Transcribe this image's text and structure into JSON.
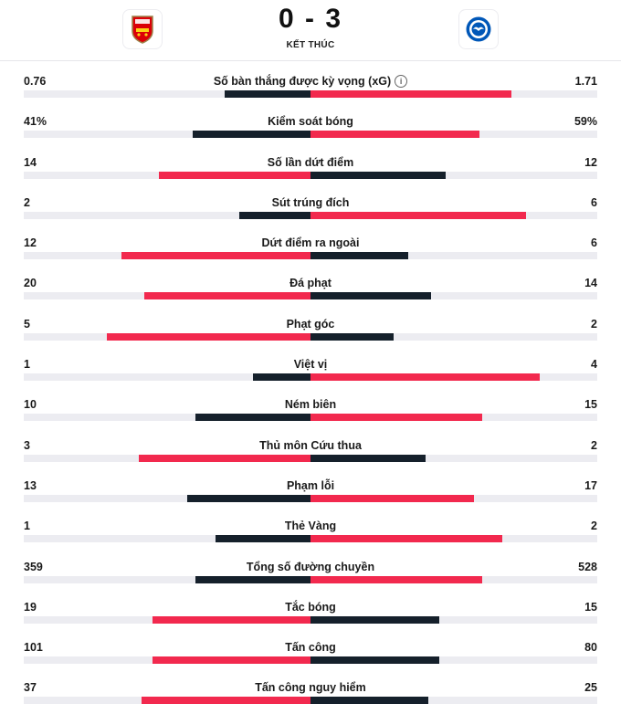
{
  "match": {
    "score": "0 - 3",
    "status": "KẾT THÚC",
    "home_team": "Arsenal",
    "away_team": "Brighton"
  },
  "colors": {
    "red": "#f2294e",
    "dark": "#15202b",
    "track": "#ececf1"
  },
  "stats": [
    {
      "label": "Số bàn thắng được kỳ vọng (xG)",
      "home": "0.76",
      "away": "1.71",
      "info": true,
      "home_frac": 0.3,
      "away_frac": 0.7,
      "home_color": "dark",
      "away_color": "red"
    },
    {
      "label": "Kiểm soát bóng",
      "home": "41%",
      "away": "59%",
      "home_frac": 0.41,
      "away_frac": 0.59,
      "home_color": "dark",
      "away_color": "red"
    },
    {
      "label": "Số lần dứt điểm",
      "home": "14",
      "away": "12",
      "home_frac": 0.53,
      "away_frac": 0.47,
      "home_color": "red",
      "away_color": "dark"
    },
    {
      "label": "Sút trúng đích",
      "home": "2",
      "away": "6",
      "home_frac": 0.25,
      "away_frac": 0.75,
      "home_color": "dark",
      "away_color": "red"
    },
    {
      "label": "Dứt điểm ra ngoài",
      "home": "12",
      "away": "6",
      "home_frac": 0.66,
      "away_frac": 0.34,
      "home_color": "red",
      "away_color": "dark"
    },
    {
      "label": "Đá phạt",
      "home": "20",
      "away": "14",
      "home_frac": 0.58,
      "away_frac": 0.42,
      "home_color": "red",
      "away_color": "dark"
    },
    {
      "label": "Phạt góc",
      "home": "5",
      "away": "2",
      "home_frac": 0.71,
      "away_frac": 0.29,
      "home_color": "red",
      "away_color": "dark"
    },
    {
      "label": "Việt vị",
      "home": "1",
      "away": "4",
      "home_frac": 0.2,
      "away_frac": 0.8,
      "home_color": "dark",
      "away_color": "red"
    },
    {
      "label": "Ném biên",
      "home": "10",
      "away": "15",
      "home_frac": 0.4,
      "away_frac": 0.6,
      "home_color": "dark",
      "away_color": "red"
    },
    {
      "label": "Thủ môn Cứu thua",
      "home": "3",
      "away": "2",
      "home_frac": 0.6,
      "away_frac": 0.4,
      "home_color": "red",
      "away_color": "dark"
    },
    {
      "label": "Phạm lỗi",
      "home": "13",
      "away": "17",
      "home_frac": 0.43,
      "away_frac": 0.57,
      "home_color": "dark",
      "away_color": "red"
    },
    {
      "label": "Thẻ Vàng",
      "home": "1",
      "away": "2",
      "home_frac": 0.33,
      "away_frac": 0.67,
      "home_color": "dark",
      "away_color": "red"
    },
    {
      "label": "Tổng số đường chuyền",
      "home": "359",
      "away": "528",
      "home_frac": 0.4,
      "away_frac": 0.6,
      "home_color": "dark",
      "away_color": "red"
    },
    {
      "label": "Tắc bóng",
      "home": "19",
      "away": "15",
      "home_frac": 0.55,
      "away_frac": 0.45,
      "home_color": "red",
      "away_color": "dark"
    },
    {
      "label": "Tấn công",
      "home": "101",
      "away": "80",
      "home_frac": 0.55,
      "away_frac": 0.45,
      "home_color": "red",
      "away_color": "dark"
    },
    {
      "label": "Tấn công nguy hiểm",
      "home": "37",
      "away": "25",
      "home_frac": 0.59,
      "away_frac": 0.41,
      "home_color": "red",
      "away_color": "dark"
    }
  ]
}
